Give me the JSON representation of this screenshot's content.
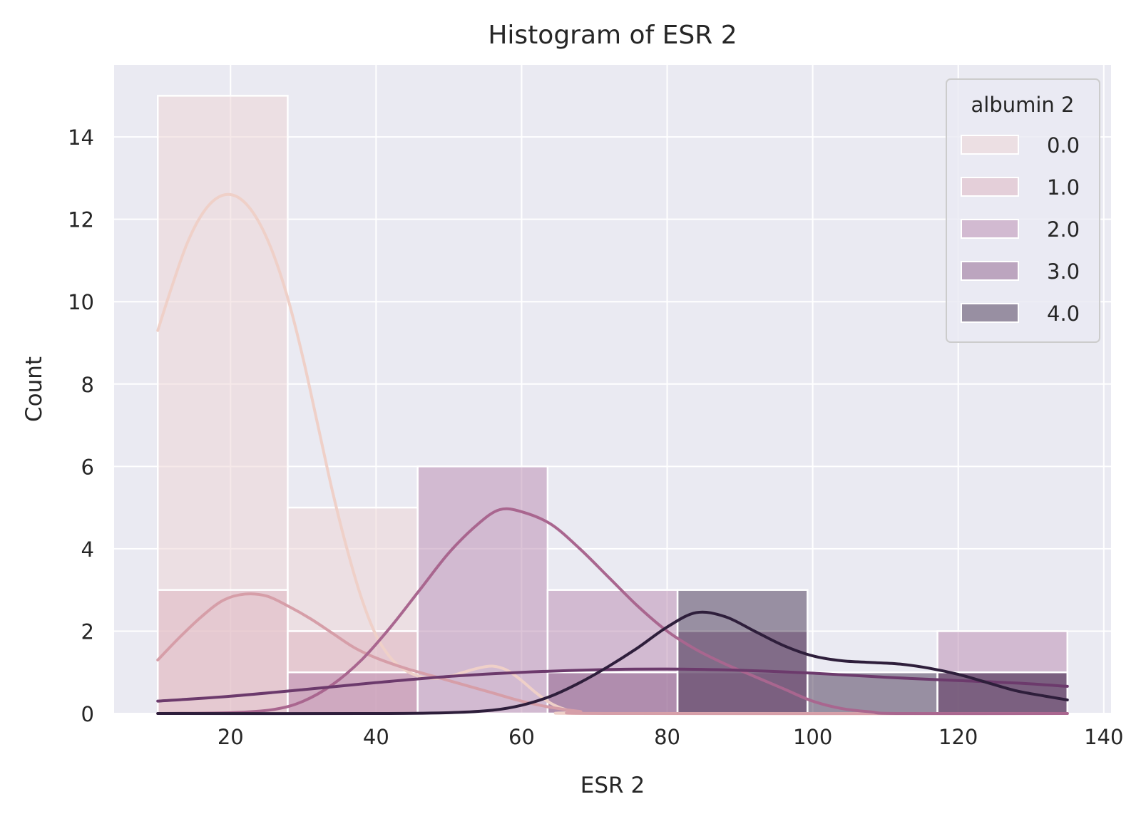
{
  "chart_data": {
    "type": "bar",
    "title": "Histogram of ESR 2",
    "xlabel": "ESR 2",
    "ylabel": "Count",
    "xlim": [
      4,
      141
    ],
    "ylim": [
      0,
      15.75
    ],
    "xticks": [
      20,
      40,
      60,
      80,
      100,
      120,
      140
    ],
    "yticks": [
      0,
      2,
      4,
      6,
      8,
      10,
      12,
      14
    ],
    "grid": true,
    "bin_edges": [
      10,
      27.857,
      45.714,
      63.571,
      81.429,
      99.286,
      117.143,
      135
    ],
    "legend": {
      "title": "albumin 2",
      "placement": "top-right",
      "entries": [
        "0.0",
        "1.0",
        "2.0",
        "3.0",
        "4.0"
      ]
    },
    "series": [
      {
        "name": "0.0",
        "color": "#eed3d3",
        "kde_color": "#efd0c8",
        "values": [
          15,
          5,
          0,
          0,
          0,
          0,
          0
        ],
        "kde": [
          [
            10,
            9.3
          ],
          [
            12,
            10.4
          ],
          [
            14,
            11.4
          ],
          [
            16,
            12.1
          ],
          [
            18,
            12.5
          ],
          [
            20,
            12.6
          ],
          [
            22,
            12.4
          ],
          [
            24,
            11.9
          ],
          [
            26,
            11.1
          ],
          [
            28,
            10.0
          ],
          [
            30,
            8.6
          ],
          [
            32,
            7.0
          ],
          [
            34,
            5.4
          ],
          [
            36,
            4.0
          ],
          [
            38,
            2.8
          ],
          [
            40,
            1.9
          ],
          [
            42,
            1.35
          ],
          [
            44,
            1.05
          ],
          [
            46,
            0.9
          ],
          [
            48,
            0.85
          ],
          [
            50,
            0.9
          ],
          [
            52,
            1.0
          ],
          [
            54,
            1.1
          ],
          [
            56,
            1.15
          ],
          [
            58,
            1.05
          ],
          [
            60,
            0.8
          ],
          [
            62,
            0.5
          ],
          [
            64,
            0.25
          ],
          [
            66,
            0.1
          ],
          [
            68,
            0.03
          ],
          [
            70,
            0.0
          ],
          [
            135,
            0.0
          ]
        ]
      },
      {
        "name": "1.0",
        "color": "#ddb3c0",
        "kde_color": "#d69ea8",
        "values": [
          3,
          2,
          0,
          0,
          0,
          0,
          0
        ],
        "kde": [
          [
            10,
            1.3
          ],
          [
            13,
            1.85
          ],
          [
            16,
            2.35
          ],
          [
            19,
            2.75
          ],
          [
            22,
            2.9
          ],
          [
            25,
            2.85
          ],
          [
            28,
            2.6
          ],
          [
            31,
            2.3
          ],
          [
            34,
            1.95
          ],
          [
            37,
            1.6
          ],
          [
            40,
            1.35
          ],
          [
            44,
            1.1
          ],
          [
            48,
            0.9
          ],
          [
            52,
            0.7
          ],
          [
            56,
            0.5
          ],
          [
            60,
            0.3
          ],
          [
            64,
            0.15
          ],
          [
            68,
            0.05
          ],
          [
            72,
            0.0
          ],
          [
            135,
            0.0
          ]
        ]
      },
      {
        "name": "2.0",
        "color": "#b98ab0",
        "kde_color": "#a9668f",
        "values": [
          0,
          1,
          6,
          3,
          1,
          0,
          2
        ],
        "kde": [
          [
            10,
            0.0
          ],
          [
            20,
            0.02
          ],
          [
            26,
            0.1
          ],
          [
            30,
            0.3
          ],
          [
            34,
            0.7
          ],
          [
            38,
            1.3
          ],
          [
            42,
            2.1
          ],
          [
            46,
            3.0
          ],
          [
            50,
            3.9
          ],
          [
            54,
            4.6
          ],
          [
            57,
            4.95
          ],
          [
            60,
            4.9
          ],
          [
            64,
            4.6
          ],
          [
            68,
            4.0
          ],
          [
            72,
            3.3
          ],
          [
            76,
            2.6
          ],
          [
            80,
            2.0
          ],
          [
            84,
            1.55
          ],
          [
            88,
            1.2
          ],
          [
            92,
            0.9
          ],
          [
            96,
            0.6
          ],
          [
            100,
            0.3
          ],
          [
            104,
            0.12
          ],
          [
            108,
            0.04
          ],
          [
            112,
            0.0
          ],
          [
            135,
            0.0
          ]
        ]
      },
      {
        "name": "3.0",
        "color": "#8d5f8c",
        "kde_color": "#6c3a6c",
        "values": [
          0,
          0,
          0,
          1,
          2,
          0,
          1
        ],
        "kde": [
          [
            10,
            0.3
          ],
          [
            20,
            0.42
          ],
          [
            30,
            0.58
          ],
          [
            40,
            0.75
          ],
          [
            50,
            0.9
          ],
          [
            60,
            1.0
          ],
          [
            70,
            1.06
          ],
          [
            80,
            1.08
          ],
          [
            90,
            1.05
          ],
          [
            100,
            0.98
          ],
          [
            110,
            0.88
          ],
          [
            120,
            0.8
          ],
          [
            128,
            0.74
          ],
          [
            135,
            0.66
          ]
        ]
      },
      {
        "name": "4.0",
        "color": "#453352",
        "kde_color": "#2e1e3b",
        "values": [
          0,
          0,
          0,
          0,
          3,
          1,
          1
        ],
        "kde": [
          [
            10,
            0.0
          ],
          [
            40,
            0.0
          ],
          [
            50,
            0.02
          ],
          [
            56,
            0.08
          ],
          [
            60,
            0.2
          ],
          [
            64,
            0.42
          ],
          [
            68,
            0.75
          ],
          [
            72,
            1.15
          ],
          [
            76,
            1.6
          ],
          [
            80,
            2.1
          ],
          [
            84,
            2.45
          ],
          [
            88,
            2.35
          ],
          [
            92,
            2.0
          ],
          [
            96,
            1.65
          ],
          [
            100,
            1.4
          ],
          [
            104,
            1.28
          ],
          [
            108,
            1.24
          ],
          [
            112,
            1.2
          ],
          [
            116,
            1.1
          ],
          [
            120,
            0.95
          ],
          [
            124,
            0.75
          ],
          [
            128,
            0.55
          ],
          [
            132,
            0.42
          ],
          [
            135,
            0.33
          ]
        ]
      }
    ]
  }
}
